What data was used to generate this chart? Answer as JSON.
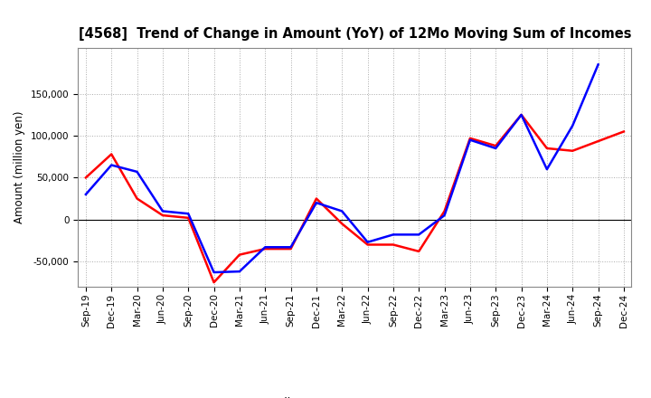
{
  "title": "[4568]  Trend of Change in Amount (YoY) of 12Mo Moving Sum of Incomes",
  "ylabel": "Amount (million yen)",
  "x_labels": [
    "Sep-19",
    "Dec-19",
    "Mar-20",
    "Jun-20",
    "Sep-20",
    "Dec-20",
    "Mar-21",
    "Jun-21",
    "Sep-21",
    "Dec-21",
    "Mar-22",
    "Jun-22",
    "Sep-22",
    "Dec-22",
    "Mar-23",
    "Jun-23",
    "Sep-23",
    "Dec-23",
    "Mar-24",
    "Jun-24",
    "Sep-24",
    "Dec-24"
  ],
  "ordinary_income": [
    30000,
    65000,
    57000,
    10000,
    7000,
    -63000,
    -62000,
    -33000,
    -33000,
    20000,
    10000,
    -27000,
    -18000,
    -18000,
    5000,
    95000,
    85000,
    125000,
    60000,
    112000,
    185000,
    null
  ],
  "net_income": [
    50000,
    78000,
    25000,
    5000,
    2000,
    -75000,
    -42000,
    -35000,
    -35000,
    25000,
    -5000,
    -30000,
    -30000,
    -38000,
    10000,
    97000,
    88000,
    125000,
    85000,
    82000,
    null,
    105000
  ],
  "ordinary_color": "#0000ff",
  "net_color": "#ff0000",
  "ylim": [
    -80000,
    205000
  ],
  "yticks": [
    -50000,
    0,
    50000,
    100000,
    150000
  ],
  "background_color": "#ffffff",
  "grid_color": "#aaaaaa"
}
